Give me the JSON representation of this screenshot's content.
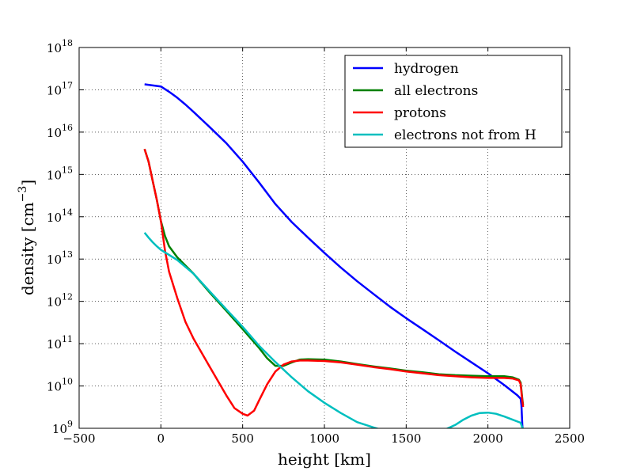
{
  "chart_data": {
    "type": "line",
    "xlabel": "height [km]",
    "ylabel": "density [cm",
    "ylabel_exponent": "−3",
    "ylabel_close": "]",
    "xlim": [
      -500,
      2500
    ],
    "ylim": [
      1000000000.0,
      1e+18
    ],
    "yscale": "log",
    "grid": true,
    "legend_position": "top-right",
    "x_ticks": [
      -500,
      0,
      500,
      1000,
      1500,
      2000,
      2500
    ],
    "x_tick_labels": [
      "−500",
      "0",
      "500",
      "1000",
      "1500",
      "2000",
      "2500"
    ],
    "y_tick_exponents": [
      9,
      10,
      11,
      12,
      13,
      14,
      15,
      16,
      17,
      18
    ],
    "y_tick_base": "10",
    "series": [
      {
        "name": "hydrogen",
        "color": "#0000ff",
        "points": [
          [
            -100,
            1.35e+17
          ],
          [
            0,
            1.2e+17
          ],
          [
            50,
            9e+16
          ],
          [
            100,
            6.5e+16
          ],
          [
            150,
            4.5e+16
          ],
          [
            200,
            3e+16
          ],
          [
            300,
            1.3e+16
          ],
          [
            400,
            5500000000000000.0
          ],
          [
            500,
            2000000000000000.0
          ],
          [
            600,
            650000000000000.0
          ],
          [
            700,
            200000000000000.0
          ],
          [
            800,
            75000000000000.0
          ],
          [
            900,
            32000000000000.0
          ],
          [
            1000,
            14000000000000.0
          ],
          [
            1100,
            6300000000000.0
          ],
          [
            1200,
            3000000000000.0
          ],
          [
            1300,
            1500000000000.0
          ],
          [
            1400,
            750000000000.0
          ],
          [
            1500,
            400000000000.0
          ],
          [
            1600,
            220000000000.0
          ],
          [
            1700,
            120000000000.0
          ],
          [
            1800,
            65000000000.0
          ],
          [
            1900,
            36000000000.0
          ],
          [
            2000,
            20000000000.0
          ],
          [
            2100,
            10500000000.0
          ],
          [
            2180,
            6000000000.0
          ],
          [
            2200,
            5000000000.0
          ],
          [
            2205,
            3500000000.0
          ],
          [
            2210,
            1200000000.0
          ],
          [
            2215,
            650000000.0
          ]
        ]
      },
      {
        "name": "all electrons",
        "color": "#008000",
        "points": [
          [
            -100,
            4000000000000000.0
          ],
          [
            -75,
            2000000000000000.0
          ],
          [
            -50,
            700000000000000.0
          ],
          [
            -25,
            250000000000000.0
          ],
          [
            0,
            80000000000000.0
          ],
          [
            25,
            35000000000000.0
          ],
          [
            50,
            20000000000000.0
          ],
          [
            100,
            11000000000000.0
          ],
          [
            200,
            4500000000000.0
          ],
          [
            300,
            1600000000000.0
          ],
          [
            400,
            600000000000.0
          ],
          [
            500,
            220000000000.0
          ],
          [
            600,
            80000000000.0
          ],
          [
            650,
            45000000000.0
          ],
          [
            700,
            30000000000.0
          ],
          [
            750,
            30000000000.0
          ],
          [
            800,
            36000000000.0
          ],
          [
            850,
            42000000000.0
          ],
          [
            900,
            43000000000.0
          ],
          [
            1000,
            42000000000.0
          ],
          [
            1100,
            38000000000.0
          ],
          [
            1200,
            33000000000.0
          ],
          [
            1300,
            29000000000.0
          ],
          [
            1400,
            26000000000.0
          ],
          [
            1500,
            23000000000.0
          ],
          [
            1600,
            21000000000.0
          ],
          [
            1700,
            19000000000.0
          ],
          [
            1800,
            18000000000.0
          ],
          [
            1900,
            17500000000.0
          ],
          [
            2000,
            17000000000.0
          ],
          [
            2100,
            17000000000.0
          ],
          [
            2150,
            16000000000.0
          ],
          [
            2190,
            14000000000.0
          ],
          [
            2200,
            12000000000.0
          ],
          [
            2205,
            8000000000.0
          ],
          [
            2210,
            5000000000.0
          ],
          [
            2215,
            3500000000.0
          ]
        ]
      },
      {
        "name": "protons",
        "color": "#ff0000",
        "points": [
          [
            -100,
            4000000000000000.0
          ],
          [
            -75,
            2000000000000000.0
          ],
          [
            -50,
            700000000000000.0
          ],
          [
            -25,
            250000000000000.0
          ],
          [
            0,
            80000000000000.0
          ],
          [
            25,
            16000000000000.0
          ],
          [
            50,
            5000000000000.0
          ],
          [
            100,
            1200000000000.0
          ],
          [
            150,
            330000000000.0
          ],
          [
            200,
            130000000000.0
          ],
          [
            300,
            28000000000.0
          ],
          [
            400,
            6000000000.0
          ],
          [
            450,
            3000000000.0
          ],
          [
            500,
            2200000000.0
          ],
          [
            530,
            2000000000.0
          ],
          [
            570,
            2600000000.0
          ],
          [
            600,
            4500000000.0
          ],
          [
            650,
            11000000000.0
          ],
          [
            700,
            22000000000.0
          ],
          [
            750,
            32000000000.0
          ],
          [
            800,
            38000000000.0
          ],
          [
            850,
            40000000000.0
          ],
          [
            900,
            40000000000.0
          ],
          [
            1000,
            39000000000.0
          ],
          [
            1100,
            36000000000.0
          ],
          [
            1200,
            32000000000.0
          ],
          [
            1300,
            28000000000.0
          ],
          [
            1400,
            25000000000.0
          ],
          [
            1500,
            22000000000.0
          ],
          [
            1600,
            20000000000.0
          ],
          [
            1700,
            18000000000.0
          ],
          [
            1800,
            17000000000.0
          ],
          [
            1900,
            16000000000.0
          ],
          [
            2000,
            15500000000.0
          ],
          [
            2100,
            15500000000.0
          ],
          [
            2150,
            15000000000.0
          ],
          [
            2190,
            13500000000.0
          ],
          [
            2200,
            11000000000.0
          ],
          [
            2205,
            7000000000.0
          ],
          [
            2210,
            4500000000.0
          ],
          [
            2215,
            3200000000.0
          ]
        ]
      },
      {
        "name": "electrons not from H",
        "color": "#00bfbf",
        "points": [
          [
            -100,
            42000000000000.0
          ],
          [
            -75,
            32000000000000.0
          ],
          [
            -50,
            25000000000000.0
          ],
          [
            -25,
            20000000000000.0
          ],
          [
            0,
            16500000000000.0
          ],
          [
            50,
            12500000000000.0
          ],
          [
            100,
            9500000000000.0
          ],
          [
            200,
            4500000000000.0
          ],
          [
            300,
            1700000000000.0
          ],
          [
            400,
            650000000000.0
          ],
          [
            500,
            250000000000.0
          ],
          [
            600,
            90000000000.0
          ],
          [
            700,
            37000000000.0
          ],
          [
            800,
            16000000000.0
          ],
          [
            900,
            7500000000.0
          ],
          [
            1000,
            4000000000.0
          ],
          [
            1100,
            2300000000.0
          ],
          [
            1200,
            1400000000.0
          ],
          [
            1300,
            1050000000.0
          ],
          [
            1400,
            800000000.0
          ],
          [
            1500,
            650000000.0
          ],
          [
            1550,
            600000000.0
          ],
          [
            1600,
            600000000.0
          ],
          [
            1650,
            650000000.0
          ],
          [
            1700,
            800000000.0
          ],
          [
            1800,
            1200000000.0
          ],
          [
            1850,
            1600000000.0
          ],
          [
            1900,
            2000000000.0
          ],
          [
            1950,
            2300000000.0
          ],
          [
            2000,
            2350000000.0
          ],
          [
            2050,
            2200000000.0
          ],
          [
            2100,
            1900000000.0
          ],
          [
            2150,
            1600000000.0
          ],
          [
            2200,
            1350000000.0
          ],
          [
            2205,
            1200000000.0
          ],
          [
            2210,
            1050000000.0
          ],
          [
            2215,
            1000000000.0
          ]
        ]
      }
    ]
  }
}
